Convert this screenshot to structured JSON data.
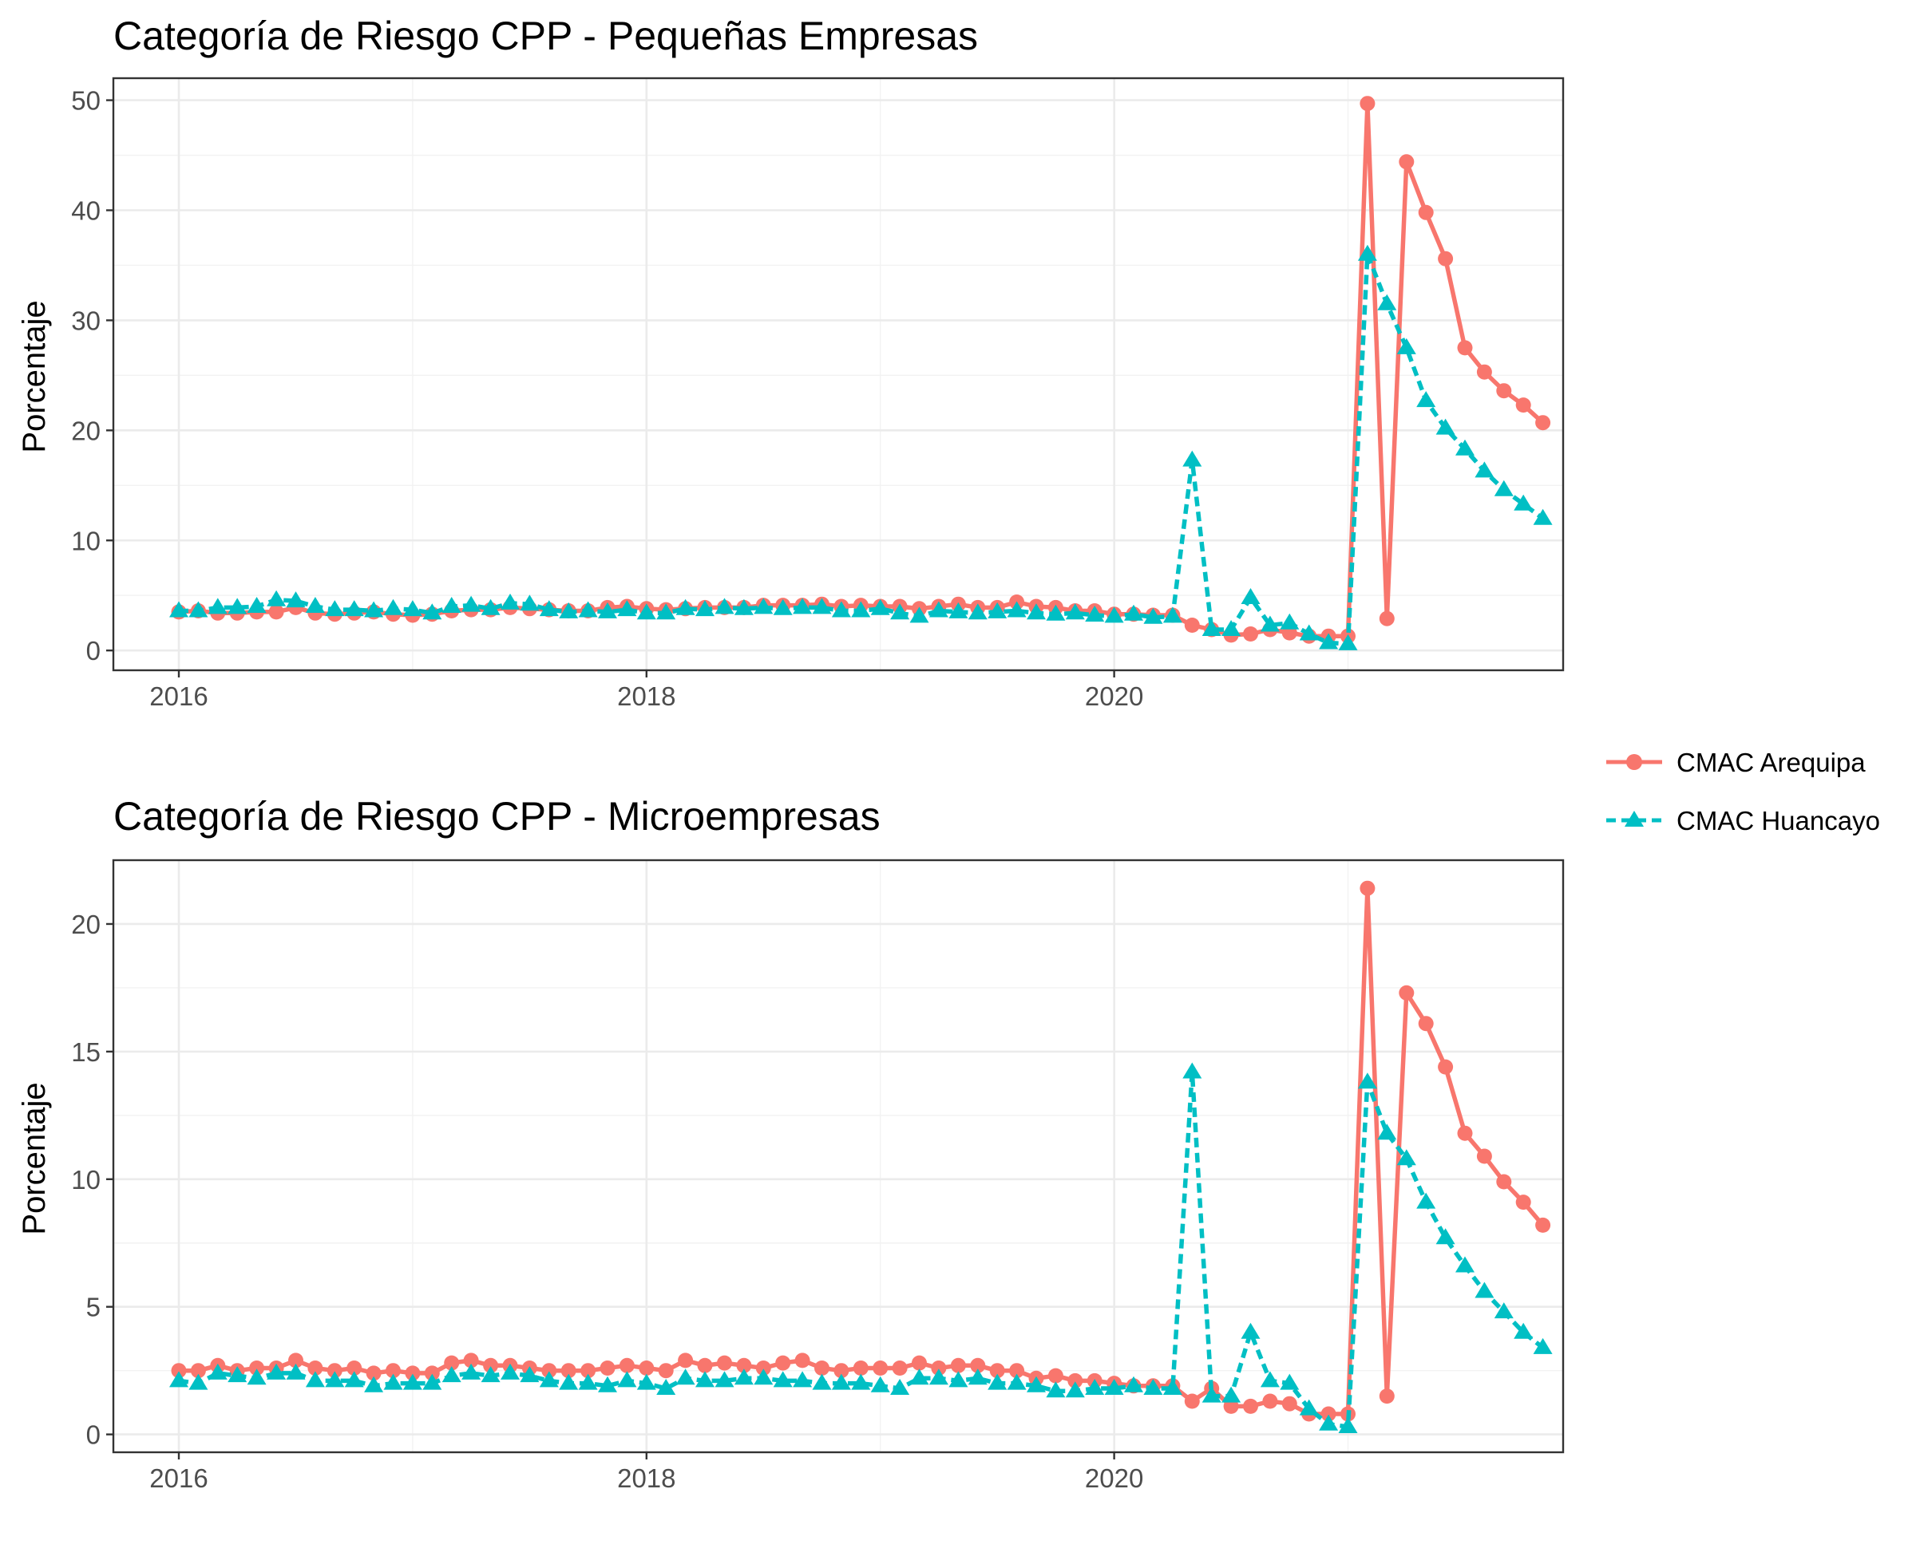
{
  "colors": {
    "arequipa": "#F8766D",
    "huancayo": "#00BFC4"
  },
  "legend": {
    "items": [
      {
        "label": "CMAC Arequipa",
        "key": "arequipa",
        "marker": "circle",
        "line": "solid"
      },
      {
        "label": "CMAC Huancayo",
        "key": "huancayo",
        "marker": "triangle",
        "line": "dashed"
      }
    ]
  },
  "chart_data": [
    {
      "type": "line",
      "title": "Categoría de Riesgo CPP - Pequeñas Empresas",
      "xlabel": "",
      "ylabel": "Porcentaje",
      "xlim": [
        2015.72,
        2021.92
      ],
      "ylim": [
        -1.8,
        52.0
      ],
      "xticks": [
        2016,
        2018,
        2020
      ],
      "yticks": [
        0,
        10,
        20,
        30,
        40,
        50
      ],
      "grid": true,
      "legend_position": "right",
      "x_start": 2016.0,
      "x_step_months": 1,
      "series": [
        {
          "name": "CMAC Arequipa",
          "key": "arequipa",
          "values": [
            3.5,
            3.6,
            3.4,
            3.4,
            3.5,
            3.5,
            3.9,
            3.4,
            3.3,
            3.4,
            3.5,
            3.3,
            3.2,
            3.3,
            3.6,
            3.7,
            3.7,
            3.9,
            3.8,
            3.7,
            3.6,
            3.6,
            3.9,
            4.0,
            3.8,
            3.7,
            3.8,
            3.9,
            3.9,
            3.9,
            4.1,
            4.1,
            4.1,
            4.2,
            4.0,
            4.1,
            4.0,
            4.0,
            3.8,
            4.0,
            4.2,
            3.9,
            3.9,
            4.4,
            4.0,
            3.9,
            3.6,
            3.6,
            3.3,
            3.3,
            3.2,
            3.2,
            2.3,
            1.9,
            1.4,
            1.5,
            1.9,
            1.6,
            1.3,
            1.3,
            1.3,
            49.7,
            2.9,
            44.4,
            39.8,
            35.6,
            27.5,
            25.3,
            23.6,
            22.3,
            20.7
          ]
        },
        {
          "name": "CMAC Huancayo",
          "key": "huancayo",
          "values": [
            3.6,
            3.6,
            3.9,
            3.9,
            4.0,
            4.6,
            4.5,
            4.0,
            3.7,
            3.7,
            3.6,
            3.8,
            3.7,
            3.4,
            4.0,
            4.1,
            3.8,
            4.3,
            4.2,
            3.7,
            3.5,
            3.6,
            3.5,
            3.7,
            3.4,
            3.4,
            3.8,
            3.7,
            3.9,
            3.8,
            3.9,
            3.8,
            3.9,
            3.9,
            3.6,
            3.6,
            3.8,
            3.4,
            3.1,
            3.6,
            3.5,
            3.4,
            3.5,
            3.6,
            3.4,
            3.3,
            3.4,
            3.2,
            3.1,
            3.3,
            3.0,
            3.1,
            17.3,
            1.9,
            1.9,
            4.8,
            2.3,
            2.5,
            1.5,
            0.7,
            0.6,
            36.0,
            31.5,
            27.5,
            22.7,
            20.2,
            18.3,
            16.3,
            14.6,
            13.3,
            12.0
          ]
        }
      ]
    },
    {
      "type": "line",
      "title": "Categoría de Riesgo CPP - Microempresas",
      "xlabel": "",
      "ylabel": "Porcentaje",
      "xlim": [
        2015.72,
        2021.92
      ],
      "ylim": [
        -0.7,
        22.5
      ],
      "xticks": [
        2016,
        2018,
        2020
      ],
      "yticks": [
        0,
        5,
        10,
        15,
        20
      ],
      "grid": true,
      "legend_position": "right",
      "x_start": 2016.0,
      "x_step_months": 1,
      "series": [
        {
          "name": "CMAC Arequipa",
          "key": "arequipa",
          "values": [
            2.5,
            2.5,
            2.7,
            2.5,
            2.6,
            2.6,
            2.9,
            2.6,
            2.5,
            2.6,
            2.4,
            2.5,
            2.4,
            2.4,
            2.8,
            2.9,
            2.7,
            2.7,
            2.6,
            2.5,
            2.5,
            2.5,
            2.6,
            2.7,
            2.6,
            2.5,
            2.9,
            2.7,
            2.8,
            2.7,
            2.6,
            2.8,
            2.9,
            2.6,
            2.5,
            2.6,
            2.6,
            2.6,
            2.8,
            2.6,
            2.7,
            2.7,
            2.5,
            2.5,
            2.2,
            2.3,
            2.1,
            2.1,
            2.0,
            1.9,
            1.9,
            1.9,
            1.3,
            1.8,
            1.1,
            1.1,
            1.3,
            1.2,
            0.8,
            0.8,
            0.8,
            21.4,
            1.5,
            17.3,
            16.1,
            14.4,
            11.8,
            10.9,
            9.9,
            9.1,
            8.2
          ]
        },
        {
          "name": "CMAC Huancayo",
          "key": "huancayo",
          "values": [
            2.1,
            2.0,
            2.4,
            2.3,
            2.2,
            2.4,
            2.4,
            2.1,
            2.1,
            2.1,
            1.9,
            2.0,
            2.0,
            2.0,
            2.3,
            2.4,
            2.3,
            2.4,
            2.3,
            2.1,
            2.0,
            2.0,
            1.9,
            2.1,
            2.0,
            1.8,
            2.2,
            2.1,
            2.1,
            2.2,
            2.2,
            2.1,
            2.1,
            2.0,
            2.0,
            2.0,
            1.9,
            1.8,
            2.2,
            2.2,
            2.1,
            2.2,
            2.0,
            2.0,
            1.9,
            1.7,
            1.7,
            1.8,
            1.8,
            1.9,
            1.8,
            1.8,
            14.2,
            1.5,
            1.5,
            4.0,
            2.1,
            2.0,
            1.0,
            0.4,
            0.3,
            13.8,
            11.8,
            10.8,
            9.1,
            7.7,
            6.6,
            5.6,
            4.8,
            4.0,
            3.4
          ]
        }
      ]
    }
  ]
}
